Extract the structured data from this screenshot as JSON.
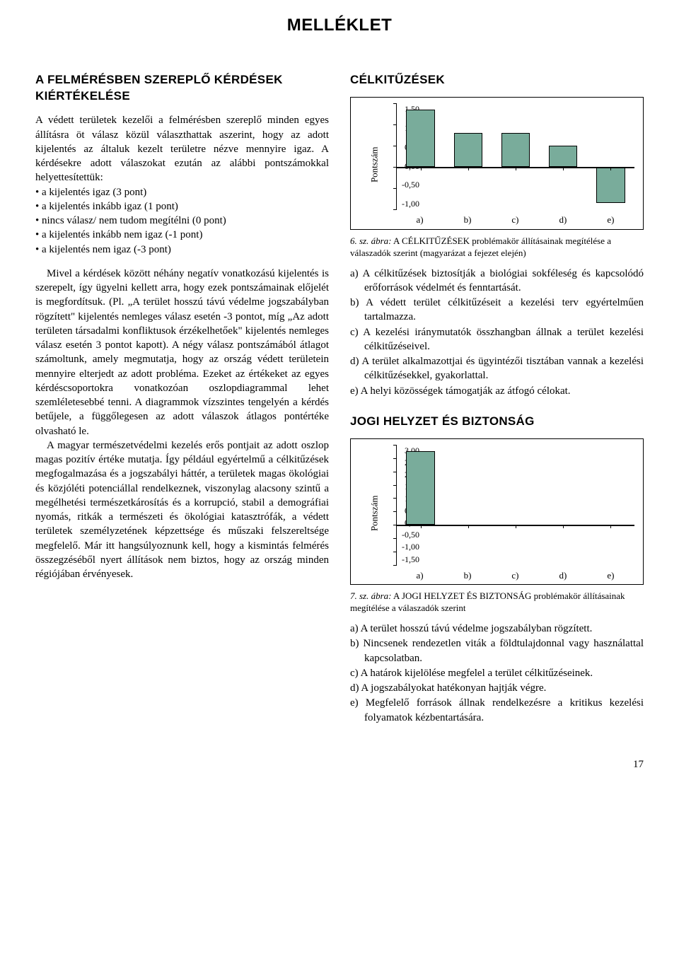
{
  "page_title": "MELLÉKLET",
  "page_number": "17",
  "left": {
    "heading": "A FELMÉRÉSBEN SZEREPLŐ KÉRDÉSEK KIÉRTÉKELÉSE",
    "p1": "A védett területek kezelői a felmérésben szereplő minden egyes állításra öt válasz közül választhattak aszerint, hogy az adott kijelentés az általuk kezelt területre nézve mennyire igaz. A kérdésekre adott válaszokat ezután az alábbi pontszámokkal helyettesítettük:",
    "bullets": [
      "a kijelentés igaz (3 pont)",
      "a kijelentés inkább igaz (1 pont)",
      "nincs válasz/ nem tudom megítélni (0 pont)",
      "a kijelentés inkább nem igaz (-1 pont)",
      "a kijelentés nem igaz (-3 pont)"
    ],
    "p2": "Mivel a kérdések között néhány negatív vonatkozású kijelentés is szerepelt, így ügyelni kellett arra, hogy ezek pontszámainak előjelét is megfordítsuk. (Pl. „A terület hosszú távú védelme jogszabályban rögzített\" kijelentés nemleges válasz esetén -3 pontot, míg „Az adott területen társadalmi konfliktusok érzékelhetőek\" kijelentés nemleges válasz esetén 3 pontot kapott). A négy válasz pontszámából átlagot számoltunk, amely megmutatja, hogy az ország védett területein mennyire elterjedt az adott probléma. Ezeket az értékeket az egyes kérdéscsoportokra vonatkozóan oszlopdiagrammal lehet szemléletesebbé tenni. A diagrammok vízszintes tengelyén a kérdés betűjele, a függőlegesen az adott válaszok átlagos pontértéke olvasható le.",
    "p3": "A magyar természetvédelmi kezelés erős pontjait az adott oszlop magas pozitív értéke mutatja. Így például egyértelmű a célkitűzések megfogalmazása és a jogszabályi háttér, a területek magas ökológiai és közjóléti potenciállal rendelkeznek, viszonylag alacsony szintű a megélhetési természetkárosítás és a korrupció, stabil a demográfiai nyomás, ritkák a természeti és ökológiai katasztrófák, a védett területek személyzetének képzettsége és műszaki felszereltsége megfelelő. Már itt hangsúlyoznunk kell, hogy a kismintás felmérés összegzéséből nyert állítások nem biztos, hogy az ország minden régiójában érvényesek."
  },
  "chart1": {
    "heading": "CÉLKITŰZÉSEK",
    "ylabel": "Pontszám",
    "ymin": -1.0,
    "ymax": 1.5,
    "yticks": [
      "1,50",
      "1,00",
      "0,50",
      "0,00",
      "-0,50",
      "-1,00"
    ],
    "categories": [
      "a)",
      "b)",
      "c)",
      "d)",
      "e)"
    ],
    "values": [
      1.35,
      0.8,
      0.8,
      0.5,
      -0.85
    ],
    "bar_color": "#79ac9b",
    "caption_lead": "6. sz. ábra:",
    "caption": " A CÉLKITŰZÉSEK problémakör állításainak megítélése a válaszadók szerint (magyarázat a fejezet elején)",
    "answers": [
      "a)  A célkitűzések biztosítják a biológiai sokféleség és kapcsolódó erőforrások védelmét és fenntartását.",
      "b)  A védett terület célkitűzéseit a kezelési terv egyértelműen tartalmazza.",
      "c)  A kezelési iránymutatók összhangban állnak a terület kezelési célkitűzéseivel.",
      "d)  A terület alkalmazottjai és ügyintézői tisztában vannak a kezelési célkitűzésekkel, gyakorlattal.",
      "e)  A helyi közösségek támogatják az átfogó célokat."
    ]
  },
  "chart2": {
    "heading": "JOGI HELYZET ÉS BIZTONSÁG",
    "ylabel": "Pontszám",
    "ymin": -1.5,
    "ymax": 3.0,
    "yticks": [
      "3,00",
      "2,50",
      "2,00",
      "1,50",
      "1,00",
      "0,50",
      "0,00",
      "-0,50",
      "-1,00",
      "-1,50"
    ],
    "categories": [
      "a)",
      "b)",
      "c)",
      "d)",
      "e)"
    ],
    "values": [
      2.75,
      -0.05,
      0.0,
      0.0,
      0.0
    ],
    "bar_color": "#79ac9b",
    "caption_lead": "7. sz. ábra:",
    "caption": " A JOGI HELYZET ÉS BIZTONSÁG problémakör állításainak megítélése a válaszadók szerint",
    "answers": [
      "a)  A terület hosszú távú védelme jogszabályban rögzített.",
      "b)  Nincsenek rendezetlen viták a földtulajdonnal vagy használattal kapcsolatban.",
      "c)  A határok kijelölése megfelel a terület célkitűzéseinek.",
      "d)  A jogszabályokat hatékonyan hajtják végre.",
      "e)  Megfelelő források állnak rendelkezésre a kritikus kezelési folyamatok kézbentartására."
    ]
  }
}
